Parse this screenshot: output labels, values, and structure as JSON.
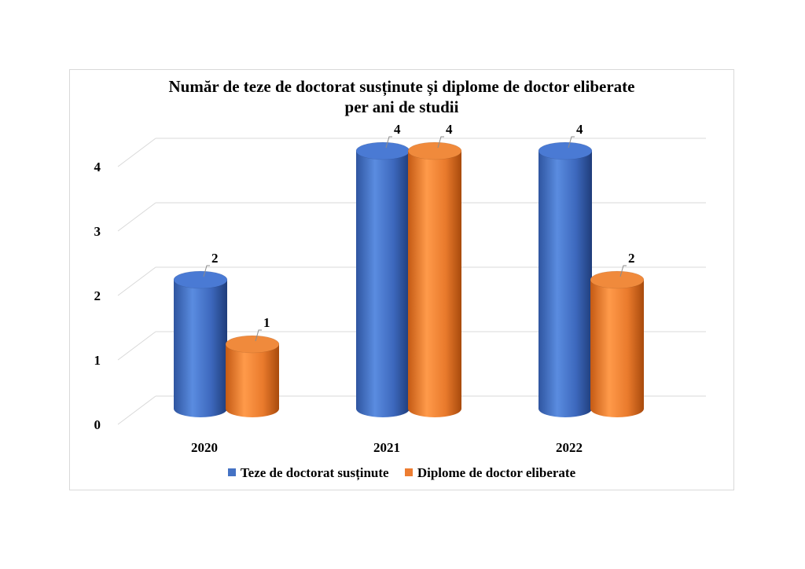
{
  "chart_data": {
    "type": "bar",
    "title_lines": [
      "Număr de teze de doctorat susținute și diplome de doctor eliberate",
      "per ani de studii"
    ],
    "categories": [
      "2020",
      "2021",
      "2022"
    ],
    "series": [
      {
        "name": "Teze de doctorat susținute",
        "values": [
          2,
          4,
          4
        ],
        "color": "#4472c4"
      },
      {
        "name": "Diplome de doctor eliberate",
        "values": [
          1,
          4,
          2
        ],
        "color": "#ed7d31"
      }
    ],
    "y_ticks": [
      "0",
      "1",
      "2",
      "3",
      "4"
    ],
    "ylim": [
      0,
      4
    ],
    "grid": true,
    "legend_position": "bottom",
    "style": "3d-cylinder"
  }
}
